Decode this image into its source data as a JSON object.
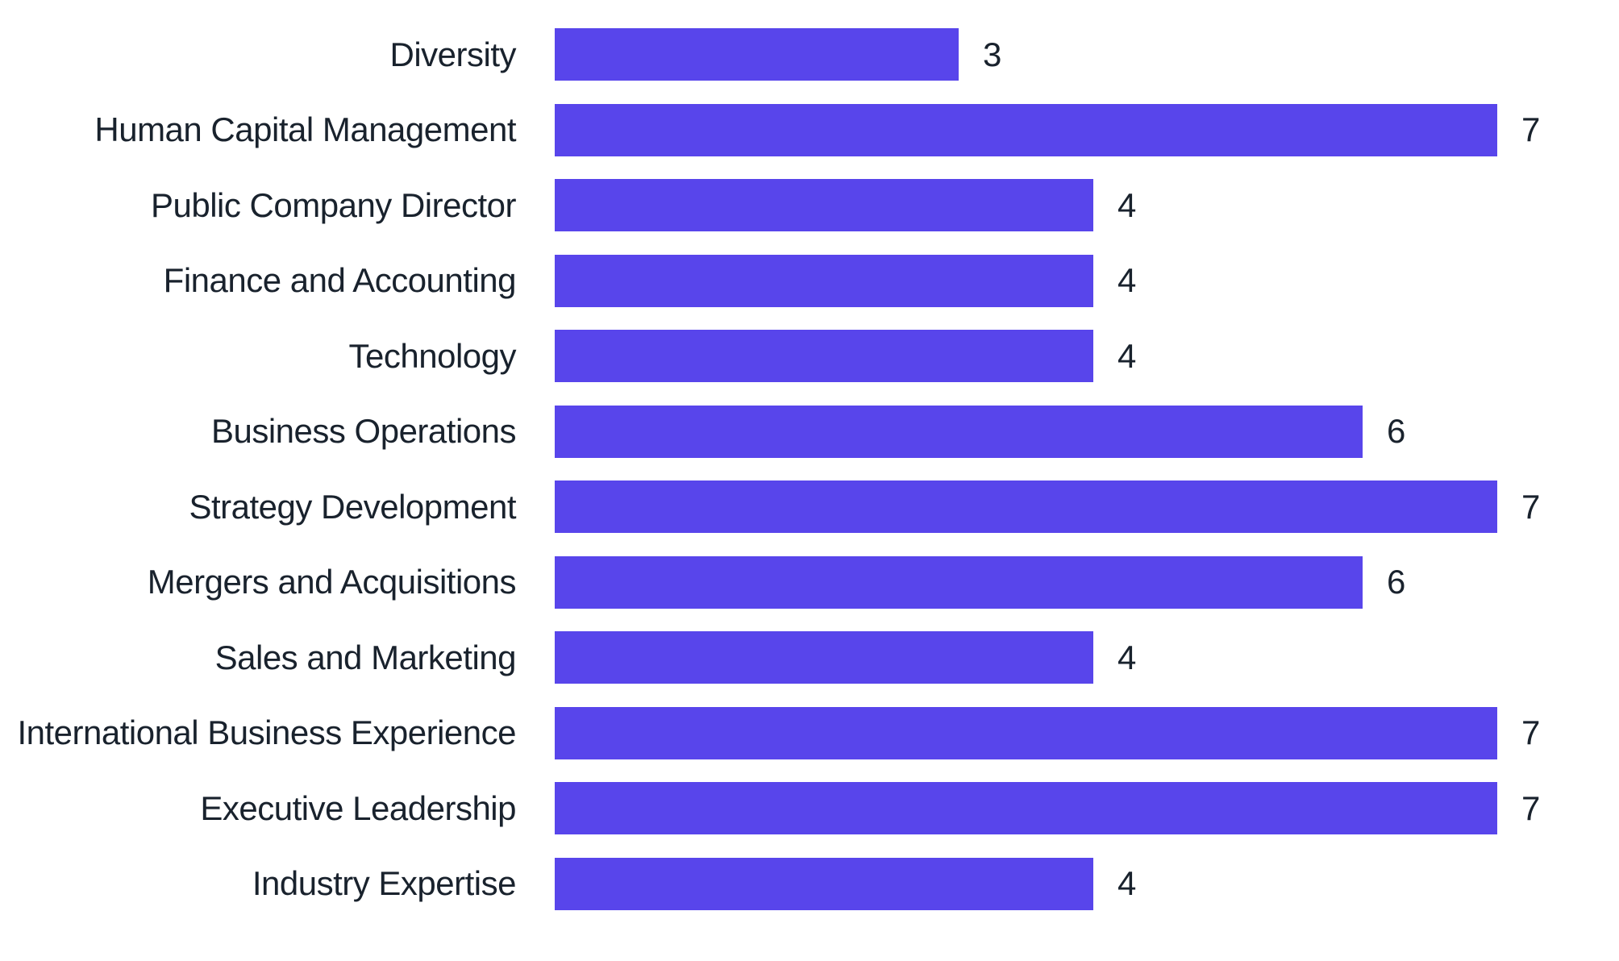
{
  "chart_data": {
    "type": "bar",
    "orientation": "horizontal",
    "categories": [
      "Diversity",
      "Human Capital Management",
      "Public Company Director",
      "Finance and Accounting",
      "Technology",
      "Business Operations",
      "Strategy Development",
      "Mergers and Acquisitions",
      "Sales and Marketing",
      "International Business Experience",
      "Executive Leadership",
      "Industry Expertise"
    ],
    "values": [
      3,
      7,
      4,
      4,
      4,
      6,
      7,
      6,
      4,
      7,
      7,
      4
    ],
    "value_axis_min": 0,
    "value_axis_max": 7,
    "value_labels": "end-of-bar",
    "grid": false,
    "legend": "none",
    "title": "",
    "xlabel": "",
    "ylabel": "",
    "bar_color": "#5845EB",
    "text_color": "#19222D",
    "background_color": "#FFFFFF"
  }
}
